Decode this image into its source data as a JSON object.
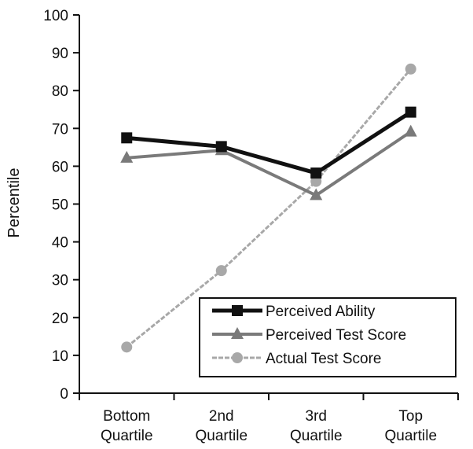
{
  "chart_data": {
    "type": "line",
    "title": "",
    "xlabel": "",
    "ylabel": "Percentile",
    "ylim": [
      0,
      100
    ],
    "yticks": [
      0,
      10,
      20,
      30,
      40,
      50,
      60,
      70,
      80,
      90,
      100
    ],
    "categories": [
      [
        "Bottom",
        "Quartile"
      ],
      [
        "2nd",
        "Quartile"
      ],
      [
        "3rd",
        "Quartile"
      ],
      [
        "Top",
        "Quartile"
      ]
    ],
    "legend_position": "bottom-right",
    "series": [
      {
        "name": "Perceived Ability",
        "marker": "square",
        "color": "#111111",
        "values": [
          67.5,
          65.2,
          58.2,
          74.3
        ]
      },
      {
        "name": "Perceived Test Score",
        "marker": "triangle",
        "color": "#7a7a7a",
        "values": [
          62.2,
          64.2,
          52.3,
          69.1
        ]
      },
      {
        "name": "Actual Test Score",
        "marker": "circle",
        "color": "#a8a8a8",
        "values": [
          12.2,
          32.4,
          56.0,
          85.7
        ]
      }
    ]
  }
}
